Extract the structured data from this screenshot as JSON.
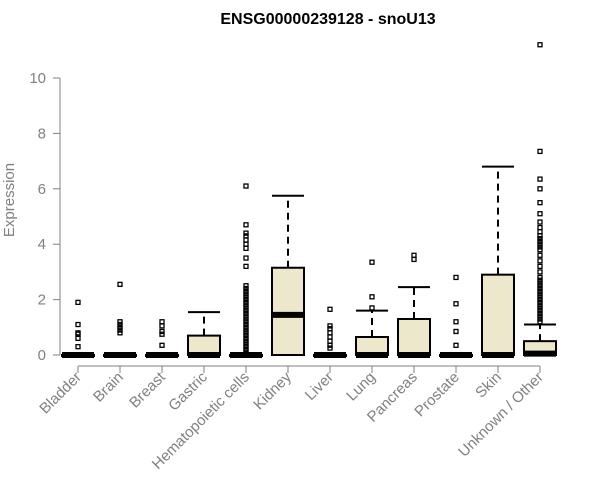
{
  "chart_data": {
    "type": "boxplot",
    "title": "ENSG00000239128 - snoU13",
    "xlabel": "",
    "ylabel": "Expression",
    "ylim": [
      0,
      11
    ],
    "yticks": [
      0,
      2,
      4,
      6,
      8,
      10
    ],
    "grid": false,
    "box_fill": "#ede7cc",
    "categories": [
      "Bladder",
      "Brain",
      "Breast",
      "Gastric",
      "Hematopoietic cells",
      "Kidney",
      "Liver",
      "Lung",
      "Pancreas",
      "Prostate",
      "Skin",
      "Unknown / Other"
    ],
    "boxes": [
      {
        "q1": 0,
        "median": 0,
        "q3": 0,
        "whisker_low": 0,
        "whisker_high": 0,
        "outliers": [
          0.3,
          0.6,
          0.75,
          0.8,
          1.1,
          1.9
        ]
      },
      {
        "q1": 0,
        "median": 0,
        "q3": 0,
        "whisker_low": 0,
        "whisker_high": 0,
        "outliers": [
          0.8,
          0.9,
          1.0,
          1.1,
          1.2,
          2.55
        ]
      },
      {
        "q1": 0,
        "median": 0,
        "q3": 0,
        "whisker_low": 0,
        "whisker_high": 0,
        "outliers": [
          0.35,
          0.75,
          0.85,
          1.05,
          1.2
        ]
      },
      {
        "q1": 0,
        "median": 0,
        "q3": 0.7,
        "whisker_low": 0,
        "whisker_high": 1.55,
        "outliers": []
      },
      {
        "q1": 0,
        "median": 0,
        "q3": 0,
        "whisker_low": 0,
        "whisker_high": 0,
        "outliers": [
          0.1,
          0.2,
          0.3,
          0.4,
          0.5,
          0.6,
          0.7,
          0.8,
          0.9,
          1.0,
          1.1,
          1.2,
          1.3,
          1.4,
          1.5,
          1.6,
          1.7,
          1.8,
          1.9,
          2.0,
          2.1,
          2.2,
          2.3,
          2.4,
          2.5,
          3.2,
          3.5,
          3.85,
          4.0,
          4.15,
          4.3,
          4.4,
          4.7,
          6.1
        ]
      },
      {
        "q1": 0,
        "median": 1.45,
        "q3": 3.15,
        "whisker_low": 0,
        "whisker_high": 5.75,
        "outliers": []
      },
      {
        "q1": 0,
        "median": 0,
        "q3": 0,
        "whisker_low": 0,
        "whisker_high": 0,
        "outliers": [
          0.25,
          0.35,
          0.5,
          0.65,
          0.8,
          0.95,
          1.05,
          1.65
        ]
      },
      {
        "q1": 0,
        "median": 0,
        "q3": 0.65,
        "whisker_low": 0,
        "whisker_high": 1.6,
        "outliers": [
          1.7,
          2.1,
          3.35
        ]
      },
      {
        "q1": 0,
        "median": 0,
        "q3": 1.3,
        "whisker_low": 0,
        "whisker_high": 2.45,
        "outliers": [
          3.45,
          3.6
        ]
      },
      {
        "q1": 0,
        "median": 0,
        "q3": 0,
        "whisker_low": 0,
        "whisker_high": 0,
        "outliers": [
          0.35,
          0.85,
          1.2,
          1.85,
          2.8
        ]
      },
      {
        "q1": 0,
        "median": 0,
        "q3": 2.9,
        "whisker_low": 0,
        "whisker_high": 6.8,
        "outliers": []
      },
      {
        "q1": 0,
        "median": 0.05,
        "q3": 0.5,
        "whisker_low": 0,
        "whisker_high": 1.1,
        "outliers": [
          1.2,
          1.3,
          1.4,
          1.5,
          1.6,
          1.7,
          1.8,
          1.9,
          2.0,
          2.1,
          2.2,
          2.3,
          2.4,
          2.5,
          2.6,
          2.7,
          2.8,
          3.0,
          3.2,
          3.4,
          3.6,
          3.8,
          3.9,
          4.0,
          4.1,
          4.2,
          4.3,
          4.45,
          4.6,
          4.8,
          5.1,
          5.5,
          6.0,
          6.35,
          7.35,
          11.2
        ]
      }
    ]
  }
}
